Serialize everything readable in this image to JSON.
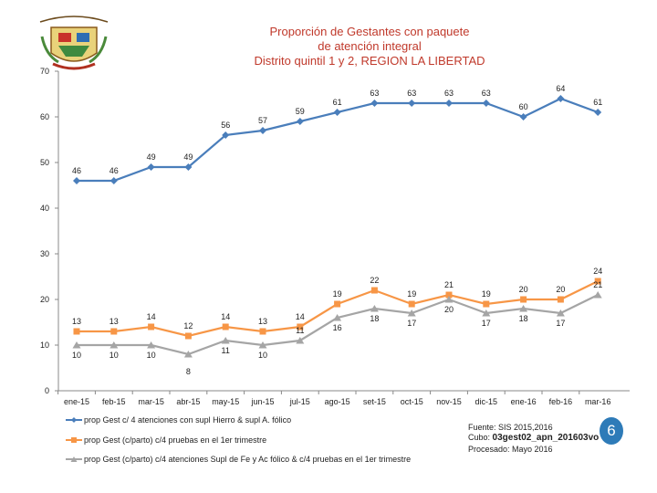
{
  "title_lines": [
    "Proporción de Gestantes con paquete",
    "de atención integral",
    "Distrito quintil 1 y 2, REGION LA LIBERTAD"
  ],
  "logo_text": "REGIÓN LA LIBERTAD",
  "footnote": {
    "source": "Fuente: SIS 2015,2016",
    "cube_prefix": "Cubo: ",
    "cube_name": "03gest02_apn_201603vo",
    "processed": "Procesado: Mayo 2016"
  },
  "page_number": "6",
  "colors": {
    "series1": "#4a7ebb",
    "series2": "#f79646",
    "series3": "#a5a5a5",
    "title": "#c0392b",
    "badge": "#2e7bb8"
  },
  "chart_data": {
    "type": "line",
    "categories": [
      "ene-15",
      "feb-15",
      "mar-15",
      "abr-15",
      "may-15",
      "jun-15",
      "jul-15",
      "ago-15",
      "set-15",
      "oct-15",
      "nov-15",
      "dic-15",
      "ene-16",
      "feb-16",
      "mar-16"
    ],
    "ylim": [
      0,
      70
    ],
    "yticks": [
      0,
      10,
      20,
      30,
      40,
      50,
      60,
      70
    ],
    "grid": false,
    "legend_position": "bottom-left",
    "series": [
      {
        "name": "prop Gest c/ 4 atenciones con supl Hierro & supl A. fólico",
        "values": [
          46,
          46,
          49,
          49,
          56,
          57,
          59,
          61,
          63,
          63,
          63,
          63,
          60,
          64,
          61
        ],
        "labels_shown": [
          true,
          true,
          true,
          true,
          true,
          true,
          true,
          true,
          true,
          true,
          true,
          true,
          true,
          true,
          true
        ]
      },
      {
        "name": "prop Gest (c/parto) c/4 pruebas en el 1er trimestre",
        "values": [
          13,
          13,
          14,
          12,
          14,
          13,
          14,
          19,
          22,
          19,
          21,
          19,
          20,
          20,
          24
        ],
        "labels_shown": [
          true,
          true,
          true,
          true,
          true,
          true,
          true,
          true,
          true,
          true,
          true,
          true,
          true,
          true,
          true
        ]
      },
      {
        "name": "prop Gest (c/parto) c/4 atenciones Supl de Fe y Ac fólico & c/4 pruebas en el 1er trimestre",
        "values": [
          10,
          10,
          10,
          8,
          11,
          10,
          11,
          16,
          18,
          17,
          20,
          17,
          18,
          17,
          21
        ],
        "labels_shown": [
          true,
          true,
          true,
          true,
          true,
          true,
          true,
          true,
          true,
          true,
          true,
          true,
          true,
          true,
          true
        ]
      }
    ]
  }
}
